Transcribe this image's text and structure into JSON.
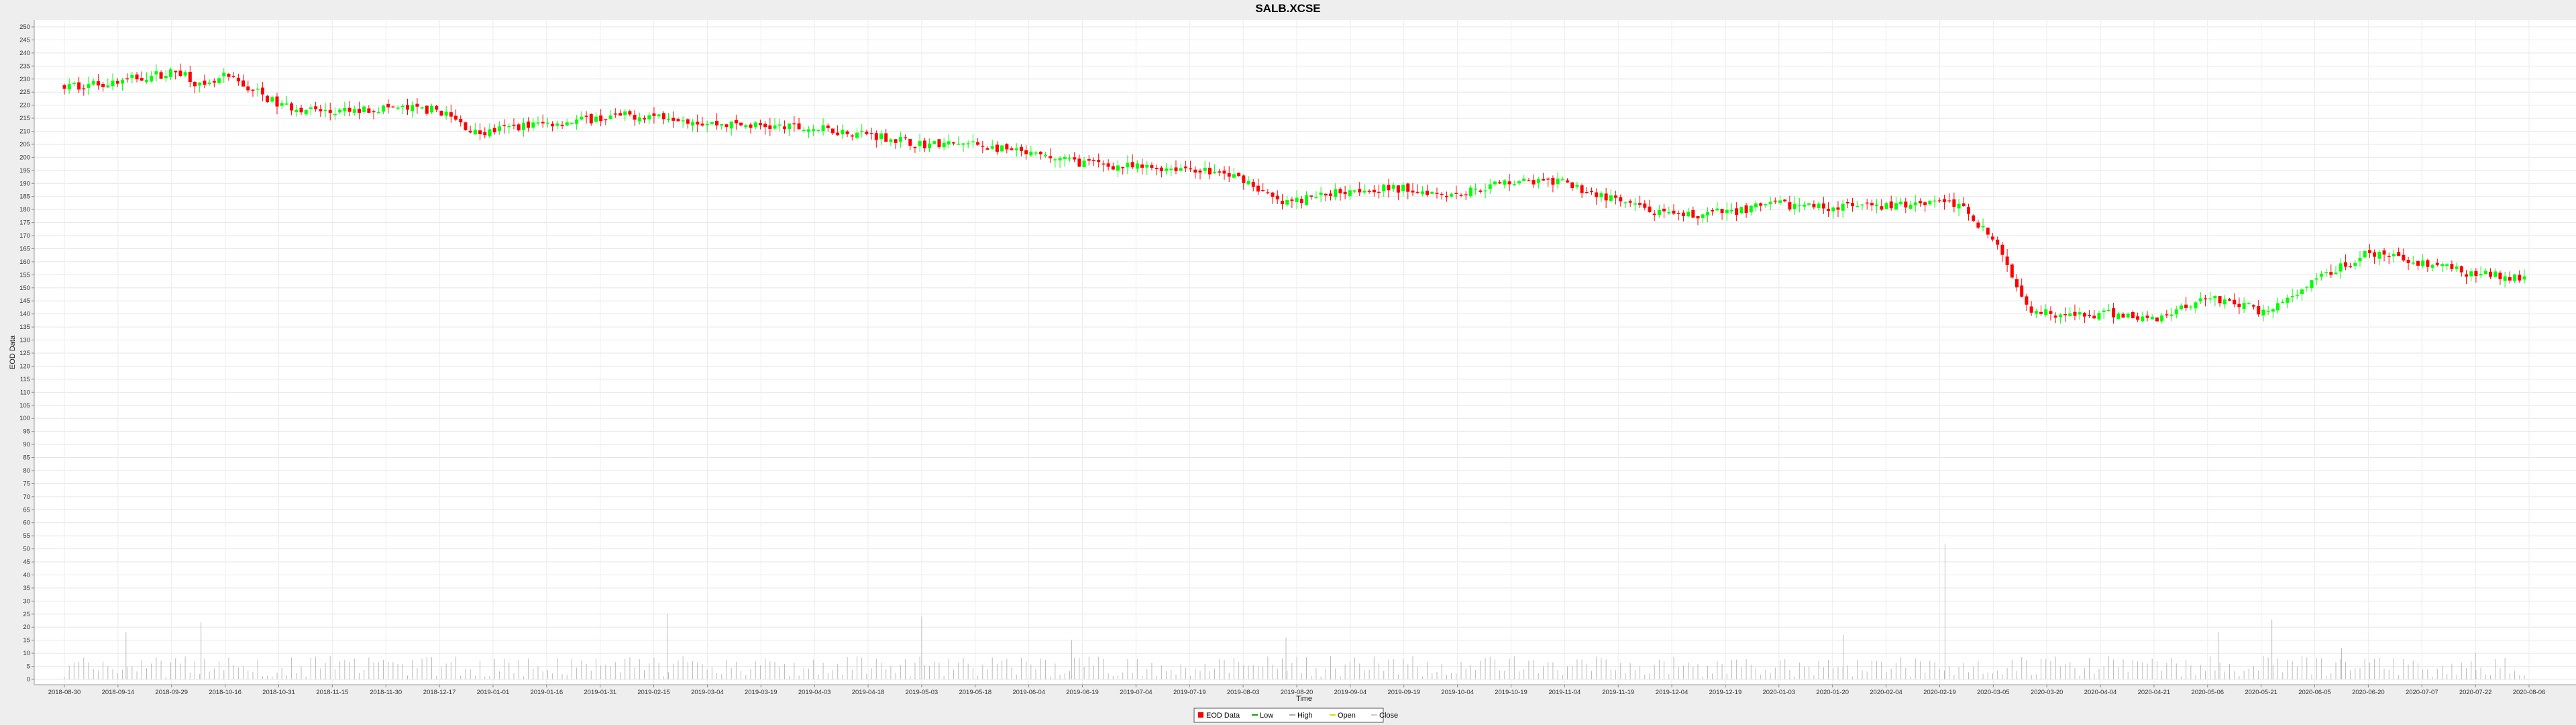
{
  "chart_data": {
    "type": "candlestick",
    "title": "SALB.XCSE",
    "xlabel": "Time",
    "ylabel": "EOD Data",
    "ylim": [
      0,
      250
    ],
    "ytick_step": 5,
    "grid": true,
    "x_tick_labels": [
      "2018-08-30",
      "2018-09-14",
      "2018-09-29",
      "2018-10-16",
      "2018-10-31",
      "2018-11-15",
      "2018-11-30",
      "2018-12-17",
      "2019-01-01",
      "2019-01-16",
      "2019-01-31",
      "2019-02-15",
      "2019-03-04",
      "2019-03-19",
      "2019-04-03",
      "2019-04-18",
      "2019-05-03",
      "2019-05-18",
      "2019-06-04",
      "2019-06-19",
      "2019-07-04",
      "2019-07-19",
      "2019-08-03",
      "2019-08-20",
      "2019-09-04",
      "2019-09-19",
      "2019-10-04",
      "2019-10-19",
      "2019-11-04",
      "2019-11-19",
      "2019-12-04",
      "2019-12-19",
      "2020-01-03",
      "2020-01-20",
      "2020-02-04",
      "2020-02-19",
      "2020-03-05",
      "2020-03-20",
      "2020-04-04",
      "2020-04-21",
      "2020-05-06",
      "2020-05-21",
      "2020-06-05",
      "2020-06-20",
      "2020-07-07",
      "2020-07-22",
      "2020-08-06"
    ],
    "price_anchors": [
      {
        "x": 0.0,
        "y": 227
      },
      {
        "x": 1.0,
        "y": 229
      },
      {
        "x": 1.5,
        "y": 231
      },
      {
        "x": 2.2,
        "y": 233
      },
      {
        "x": 2.6,
        "y": 226
      },
      {
        "x": 3.0,
        "y": 231
      },
      {
        "x": 3.6,
        "y": 225
      },
      {
        "x": 4.0,
        "y": 220
      },
      {
        "x": 5.0,
        "y": 217
      },
      {
        "x": 6.0,
        "y": 219
      },
      {
        "x": 7.0,
        "y": 218
      },
      {
        "x": 7.7,
        "y": 209
      },
      {
        "x": 8.5,
        "y": 212
      },
      {
        "x": 9.5,
        "y": 214
      },
      {
        "x": 10.5,
        "y": 216
      },
      {
        "x": 11.3,
        "y": 216
      },
      {
        "x": 12.0,
        "y": 213
      },
      {
        "x": 13.0,
        "y": 212
      },
      {
        "x": 14.0,
        "y": 211
      },
      {
        "x": 15.0,
        "y": 209
      },
      {
        "x": 16.0,
        "y": 205
      },
      {
        "x": 17.0,
        "y": 205
      },
      {
        "x": 18.0,
        "y": 201
      },
      {
        "x": 19.0,
        "y": 198
      },
      {
        "x": 20.0,
        "y": 196
      },
      {
        "x": 21.0,
        "y": 196
      },
      {
        "x": 22.0,
        "y": 192
      },
      {
        "x": 22.7,
        "y": 182
      },
      {
        "x": 24.0,
        "y": 188
      },
      {
        "x": 25.0,
        "y": 188
      },
      {
        "x": 26.0,
        "y": 186
      },
      {
        "x": 27.0,
        "y": 191
      },
      {
        "x": 28.0,
        "y": 190
      },
      {
        "x": 29.0,
        "y": 183
      },
      {
        "x": 30.0,
        "y": 177
      },
      {
        "x": 31.0,
        "y": 179
      },
      {
        "x": 32.0,
        "y": 182
      },
      {
        "x": 33.0,
        "y": 181
      },
      {
        "x": 34.0,
        "y": 181
      },
      {
        "x": 35.0,
        "y": 184
      },
      {
        "x": 35.5,
        "y": 180
      },
      {
        "x": 36.0,
        "y": 168
      },
      {
        "x": 36.7,
        "y": 142
      },
      {
        "x": 37.5,
        "y": 139
      },
      {
        "x": 38.3,
        "y": 140
      },
      {
        "x": 39.0,
        "y": 138
      },
      {
        "x": 40.0,
        "y": 147
      },
      {
        "x": 41.0,
        "y": 141
      },
      {
        "x": 41.5,
        "y": 145
      },
      {
        "x": 42.2,
        "y": 155
      },
      {
        "x": 43.0,
        "y": 163
      },
      {
        "x": 44.0,
        "y": 160
      },
      {
        "x": 45.0,
        "y": 155
      },
      {
        "x": 46.0,
        "y": 154
      },
      {
        "x": 46.9,
        "y": 155
      }
    ],
    "volume_spikes": [
      {
        "x": 1.15,
        "v": 18
      },
      {
        "x": 2.55,
        "v": 22
      },
      {
        "x": 11.25,
        "v": 25
      },
      {
        "x": 16.0,
        "v": 24
      },
      {
        "x": 18.8,
        "v": 15
      },
      {
        "x": 22.8,
        "v": 16
      },
      {
        "x": 33.2,
        "v": 17
      },
      {
        "x": 35.1,
        "v": 52
      },
      {
        "x": 40.2,
        "v": 18
      },
      {
        "x": 41.2,
        "v": 23
      },
      {
        "x": 42.5,
        "v": 12
      },
      {
        "x": 45.0,
        "v": 10
      }
    ],
    "series_colors": {
      "up": "#00ff00",
      "down": "#ff0000",
      "volume": "#bbbbbb"
    },
    "legend": {
      "placement": "bottom-center",
      "items": [
        {
          "label": "EOD Data",
          "color": "#ff0000",
          "kind": "box"
        },
        {
          "label": "Low",
          "color": "#00aa00",
          "kind": "line"
        },
        {
          "label": "High",
          "color": "#aaaaaa",
          "kind": "line"
        },
        {
          "label": "Open",
          "color": "#dddd00",
          "kind": "line"
        },
        {
          "label": "Close",
          "color": "#cccccc",
          "kind": "line"
        }
      ]
    }
  }
}
